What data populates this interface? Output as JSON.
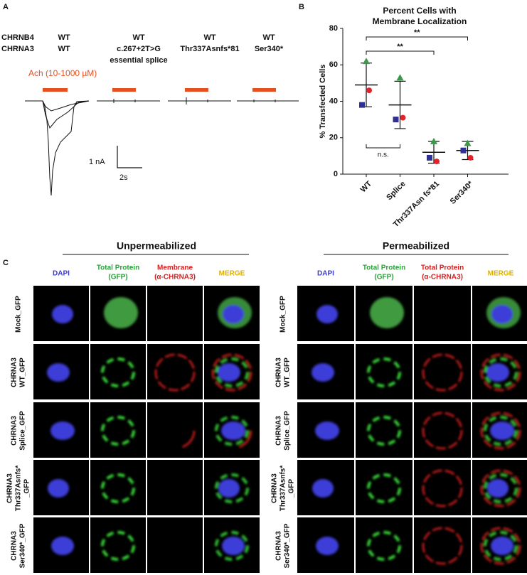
{
  "panel_a": {
    "label": "A",
    "row_labels": [
      "CHRNB4",
      "CHRNA3"
    ],
    "columns": [
      [
        "WT",
        "WT"
      ],
      [
        "WT",
        "c.267+2T>G",
        "essential splice"
      ],
      [
        "WT",
        "Thr337Asnfs*81"
      ],
      [
        "WT",
        "Ser340*"
      ]
    ],
    "stimulus": "Ach (10-1000 µM)",
    "scale_y": "1 nA",
    "scale_x": "2s"
  },
  "chart_data": {
    "type": "scatter",
    "panel_label": "B",
    "title": [
      "Percent Cells with",
      "Membrane Localization"
    ],
    "ylabel": "% Transfected Cells",
    "categories": [
      "WT",
      "Splice",
      "Thr337Asn fs*81",
      "Ser340*"
    ],
    "series": [
      {
        "marker": "circle",
        "color": "#e0242b",
        "values": [
          46,
          31,
          7,
          9
        ]
      },
      {
        "marker": "square",
        "color": "#2e3192",
        "values": [
          38,
          30,
          9,
          13
        ]
      },
      {
        "marker": "triangle",
        "color": "#3a9a4a",
        "values": [
          62,
          53,
          18,
          17
        ]
      }
    ],
    "mean": [
      49,
      38,
      12,
      13
    ],
    "sd": [
      12,
      13,
      6,
      5
    ],
    "ylim": [
      0,
      80
    ],
    "yticks": [
      0,
      20,
      40,
      60,
      80
    ],
    "annotations": [
      "**",
      "**",
      "n.s."
    ]
  },
  "panel_c": {
    "label": "C",
    "groups": [
      {
        "title": "Unpermeabilized",
        "headers": [
          [
            "DAPI"
          ],
          [
            "Total Protein",
            "(GFP)"
          ],
          [
            "Membrane",
            "(α-CHRNA3)"
          ],
          [
            "MERGE"
          ]
        ]
      },
      {
        "title": "Permeabilized",
        "headers": [
          [
            "DAPI"
          ],
          [
            "Total Protein",
            "(GFP)"
          ],
          [
            "Total Protein",
            "(α-CHRNA3)"
          ],
          [
            "MERGE"
          ]
        ]
      }
    ],
    "rows": [
      [
        "Mock_GFP"
      ],
      [
        "CHRNA3",
        "WT_GFP"
      ],
      [
        "CHRNA3",
        "Splice_GFP"
      ],
      [
        "CHRNA3",
        "Thr337Asnfs*",
        "_GFP"
      ],
      [
        "CHRNA3",
        "Ser340*_GFP"
      ]
    ]
  }
}
